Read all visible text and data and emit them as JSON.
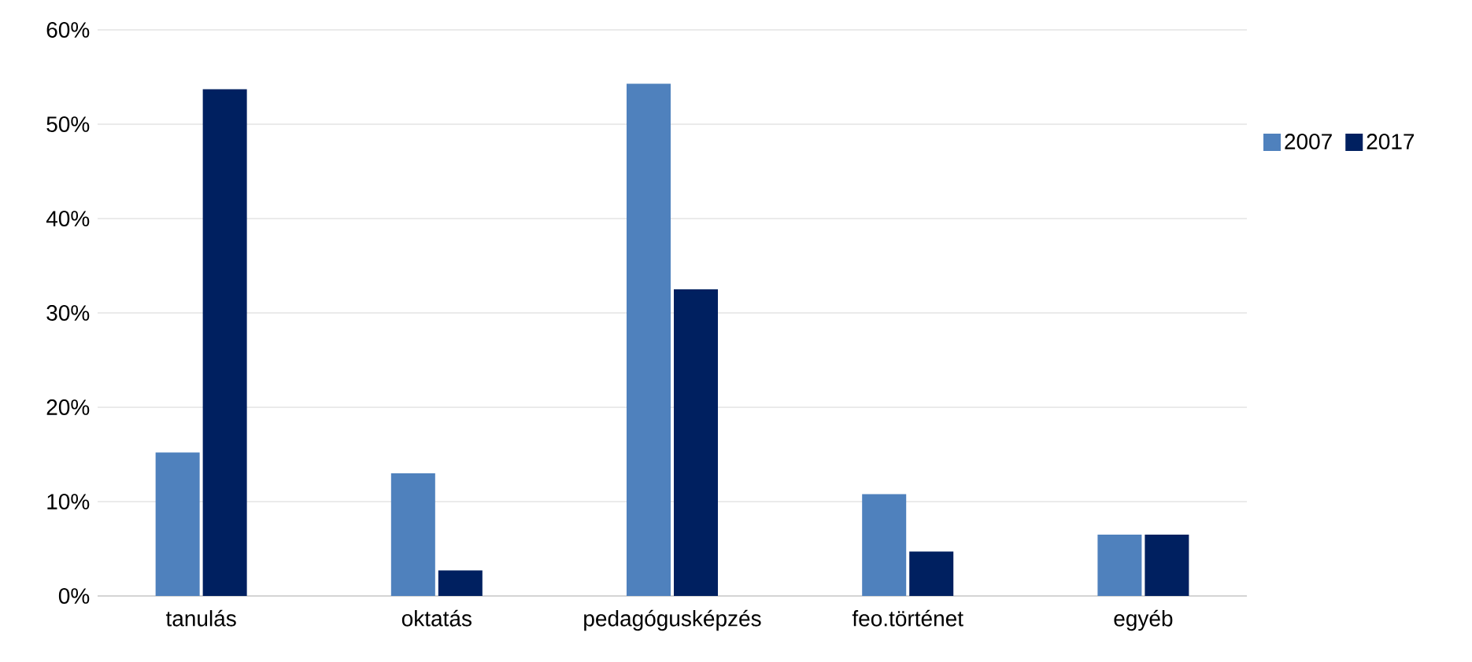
{
  "chart_data": {
    "type": "bar",
    "categories": [
      "tanulás",
      "oktatás",
      "pedagógusképzés",
      "feo.történet",
      "egyéb"
    ],
    "series": [
      {
        "name": "2007",
        "color": "#4f81bd",
        "values": [
          15.2,
          13.0,
          54.3,
          10.8,
          6.5
        ]
      },
      {
        "name": "2017",
        "color": "#002060",
        "values": [
          53.7,
          2.7,
          32.5,
          4.7,
          6.5
        ]
      }
    ],
    "ylim": [
      0,
      60
    ],
    "yticks": [
      {
        "value": 0,
        "label": "0%"
      },
      {
        "value": 10,
        "label": "10%"
      },
      {
        "value": 20,
        "label": "20%"
      },
      {
        "value": 30,
        "label": "30%"
      },
      {
        "value": 40,
        "label": "40%"
      },
      {
        "value": 50,
        "label": "50%"
      },
      {
        "value": 60,
        "label": "60%"
      }
    ],
    "grid": "y",
    "legend": "right"
  }
}
